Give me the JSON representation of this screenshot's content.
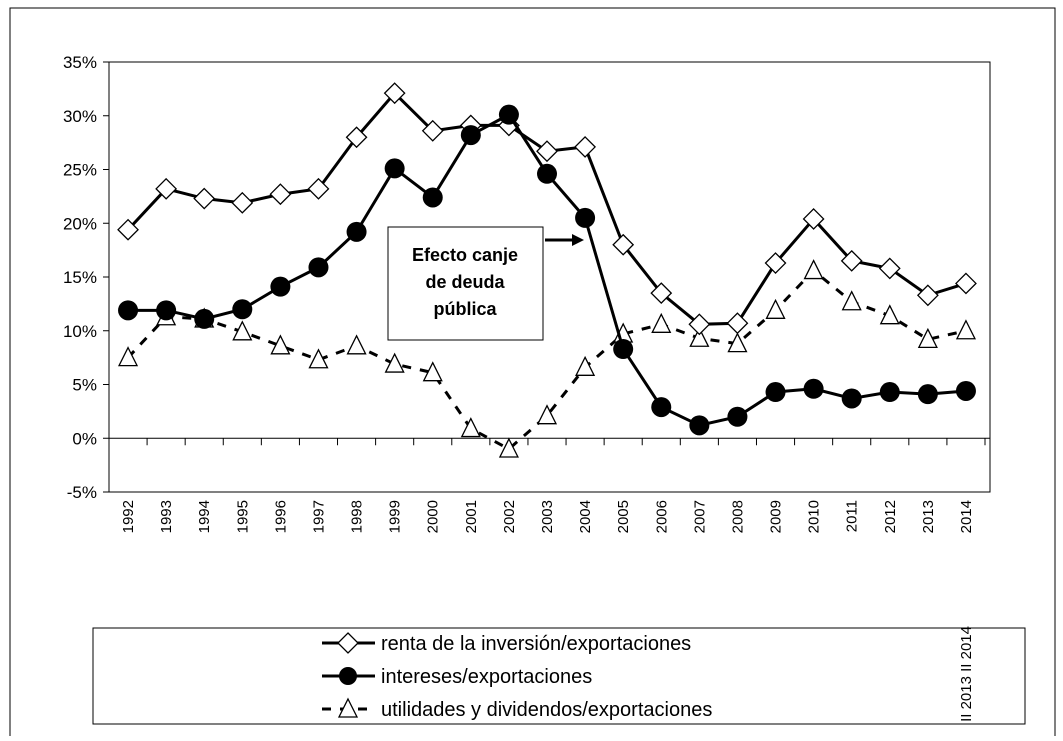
{
  "chart_data": {
    "type": "line",
    "categories": [
      "1992",
      "1993",
      "1994",
      "1995",
      "1996",
      "1997",
      "1998",
      "1999",
      "2000",
      "2001",
      "2002",
      "2003",
      "2004",
      "2005",
      "2006",
      "2007",
      "2008",
      "2009",
      "2010",
      "2011",
      "2012",
      "2013",
      "2014"
    ],
    "series": [
      {
        "name": "renta de la inversión/exportaciones",
        "color": "#000000",
        "dash": false,
        "marker": "diamond",
        "values": [
          19.4,
          23.2,
          22.3,
          21.9,
          22.7,
          23.2,
          28.0,
          32.1,
          28.6,
          29.1,
          29.1,
          26.7,
          27.1,
          18.0,
          13.5,
          10.6,
          10.7,
          16.3,
          20.4,
          16.5,
          15.8,
          13.3,
          14.4
        ]
      },
      {
        "name": "intereses/exportaciones",
        "color": "#000000",
        "dash": false,
        "marker": "circle",
        "values": [
          11.9,
          11.9,
          11.1,
          12.0,
          14.1,
          15.9,
          19.2,
          25.1,
          22.4,
          28.2,
          30.1,
          24.6,
          20.5,
          8.3,
          2.9,
          1.2,
          2.0,
          4.3,
          4.6,
          3.7,
          4.3,
          4.1,
          4.4
        ]
      },
      {
        "name": "utilidades y dividendos/exportaciones",
        "color": "#000000",
        "dash": true,
        "marker": "triangle",
        "values": [
          7.5,
          11.3,
          11.1,
          9.9,
          8.6,
          7.3,
          8.6,
          6.9,
          6.1,
          0.9,
          -1.0,
          2.1,
          6.6,
          9.7,
          10.6,
          9.3,
          8.8,
          11.9,
          15.6,
          12.7,
          11.4,
          9.2,
          10.0
        ]
      }
    ],
    "ylim": [
      -5,
      35
    ],
    "yticks": [
      {
        "value": -5,
        "label": "-5%"
      },
      {
        "value": 0,
        "label": "0%"
      },
      {
        "value": 5,
        "label": "5%"
      },
      {
        "value": 10,
        "label": "10%"
      },
      {
        "value": 15,
        "label": "15%"
      },
      {
        "value": 20,
        "label": "20%"
      },
      {
        "value": 25,
        "label": "25%"
      },
      {
        "value": 30,
        "label": "30%"
      },
      {
        "value": 35,
        "label": "35%"
      }
    ],
    "annotation_lines": [
      "Efecto canje",
      "de deuda",
      "pública"
    ],
    "extra_label": "II 2013 II 2014",
    "grid": false
  }
}
